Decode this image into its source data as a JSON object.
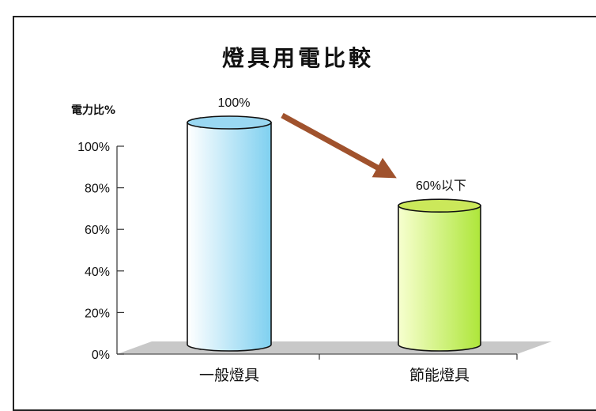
{
  "chart_data": {
    "type": "bar",
    "title": "燈具用電比較",
    "ylabel": "電力比%",
    "xlabel": "",
    "categories": [
      "一般燈具",
      "節能燈具"
    ],
    "values": [
      100,
      60
    ],
    "data_labels": [
      "100%",
      "60%以下"
    ],
    "ylim": [
      0,
      100
    ],
    "yticks": [
      "0%",
      "20%",
      "40%",
      "60%",
      "80%",
      "100%"
    ],
    "grid": false,
    "legend": "none",
    "annotation": "arrow from 一般燈具 to 節能燈具",
    "colors": {
      "bar1_light": "#ffffff",
      "bar1_dark": "#7fd0f0",
      "bar1_top": "#9ad8f2",
      "bar2_light": "#f7ffcf",
      "bar2_dark": "#aee63a",
      "bar2_top": "#cbe85a",
      "arrow": "#a0522d",
      "floor": "#c8c8c8"
    }
  }
}
